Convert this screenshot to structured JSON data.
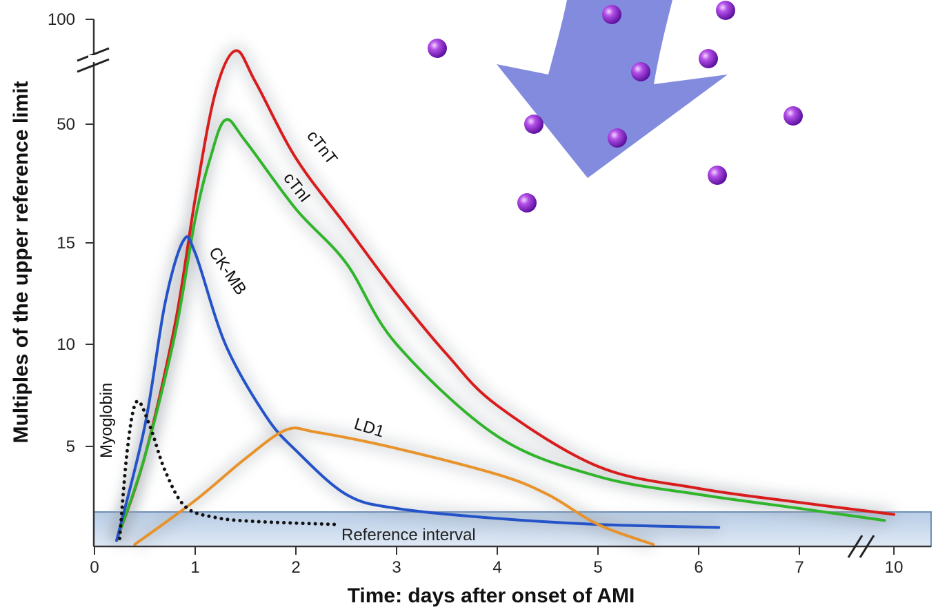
{
  "chart_data": {
    "type": "line",
    "title": "",
    "xlabel": "Time: days after onset of AMI",
    "ylabel": "Multiples of the upper reference limit",
    "x_ticks": [
      "0",
      "1",
      "2",
      "3",
      "4",
      "5",
      "6",
      "7",
      "10"
    ],
    "y_ticks": [
      "5",
      "10",
      "15",
      "50",
      "100"
    ],
    "y_scale": "broken, non-linear (5, 10, 15, 50, 100 equally spaced; axis break between 50 and 100)",
    "x_scale": "linear 0-7, axis break before 10",
    "reference_interval": {
      "label": "Reference interval",
      "y_range": [
        0,
        1.7
      ]
    },
    "grid": false,
    "legend": "none (series labeled directly on curves)",
    "series": [
      {
        "name": "cTnT",
        "color": "#d81c1c",
        "x": [
          0.22,
          0.5,
          0.8,
          1.0,
          1.2,
          1.4,
          1.6,
          2.0,
          2.5,
          3.0,
          3.5,
          4.0,
          5.0,
          6.0,
          7.0,
          10.0
        ],
        "y": [
          0.3,
          4.5,
          11,
          28,
          65,
          85,
          70,
          40,
          20,
          12.5,
          9.5,
          7,
          4,
          2.9,
          2.2,
          1.6
        ]
      },
      {
        "name": "cTnI",
        "color": "#2fb42a",
        "x": [
          0.22,
          0.5,
          0.8,
          1.0,
          1.15,
          1.3,
          1.5,
          2.0,
          2.5,
          3.0,
          4.0,
          5.0,
          6.0,
          7.0,
          9.7
        ],
        "y": [
          0.3,
          4.5,
          10.5,
          22,
          40,
          52,
          45,
          25,
          14,
          10,
          5.5,
          3.5,
          2.6,
          1.9,
          1.3
        ]
      },
      {
        "name": "CK-MB",
        "color": "#2352c9",
        "x": [
          0.22,
          0.5,
          0.7,
          0.88,
          1.0,
          1.3,
          1.7,
          2.0,
          2.5,
          3.0,
          4.0,
          5.0,
          6.2
        ],
        "y": [
          0.3,
          6,
          12,
          15.5,
          14.5,
          10,
          6.5,
          4.8,
          2.6,
          1.9,
          1.4,
          1.1,
          0.95
        ]
      },
      {
        "name": "LD1",
        "color": "#e8922a",
        "x": [
          0.4,
          1.0,
          1.5,
          1.9,
          2.2,
          3.0,
          4.0,
          4.5,
          5.0,
          5.55
        ],
        "y": [
          0.1,
          2.3,
          4.4,
          5.8,
          5.7,
          4.9,
          3.6,
          2.6,
          1.1,
          0.1
        ]
      },
      {
        "name": "Myoglobin",
        "color": "#111111",
        "dashed": true,
        "x": [
          0.25,
          0.33,
          0.42,
          0.55,
          0.7,
          0.9,
          1.2,
          1.6,
          2.4
        ],
        "y": [
          0.4,
          5,
          7.2,
          6,
          3.8,
          2,
          1.45,
          1.25,
          1.1
        ]
      }
    ]
  }
}
